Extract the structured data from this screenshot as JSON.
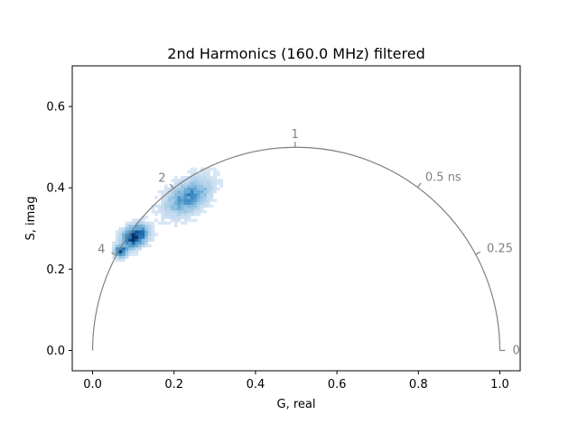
{
  "chart_data": {
    "type": "heatmap",
    "title": "2nd Harmonics (160.0 MHz) filtered",
    "xlabel": "G, real",
    "ylabel": "S, imag",
    "xlim": [
      -0.05,
      1.05
    ],
    "ylim": [
      -0.05,
      0.7
    ],
    "xticks": [
      {
        "value": 0.0,
        "label": "0.0"
      },
      {
        "value": 0.2,
        "label": "0.2"
      },
      {
        "value": 0.4,
        "label": "0.4"
      },
      {
        "value": 0.6,
        "label": "0.6"
      },
      {
        "value": 0.8,
        "label": "0.8"
      },
      {
        "value": 1.0,
        "label": "1.0"
      }
    ],
    "yticks": [
      {
        "value": 0.0,
        "label": "0.0"
      },
      {
        "value": 0.2,
        "label": "0.2"
      },
      {
        "value": 0.4,
        "label": "0.4"
      },
      {
        "value": 0.6,
        "label": "0.6"
      }
    ],
    "grid": false,
    "colormap": [
      "#f7fbff",
      "#c6dbef",
      "#6baed6",
      "#2171b5",
      "#08306b"
    ],
    "universal_circle": {
      "center": [
        0.5,
        0.0
      ],
      "radius": 0.5,
      "color": "#808080",
      "lifetime_labels": [
        {
          "label": "0",
          "lifetime_ns": 0
        },
        {
          "label": "0.25",
          "lifetime_ns": 0.25
        },
        {
          "label": "0.5 ns",
          "lifetime_ns": 0.5
        },
        {
          "label": "1",
          "lifetime_ns": 1
        },
        {
          "label": "2",
          "lifetime_ns": 2
        },
        {
          "label": "4",
          "lifetime_ns": 4
        }
      ]
    },
    "clusters": [
      {
        "center": [
          0.23,
          0.375
        ],
        "peak_density": 0.55
      },
      {
        "center": [
          0.1,
          0.278
        ],
        "peak_density": 1.0
      },
      {
        "center": [
          0.065,
          0.24
        ],
        "peak_density": 0.75
      }
    ]
  }
}
